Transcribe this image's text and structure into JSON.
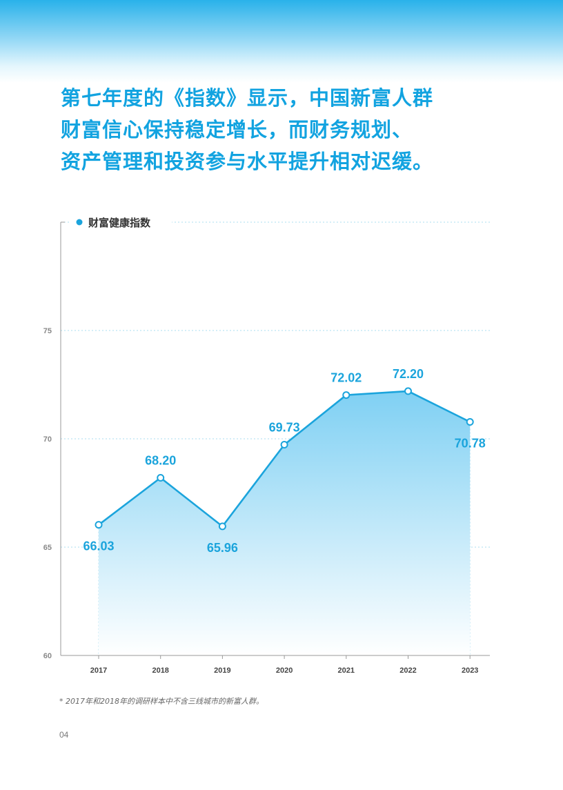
{
  "headline": {
    "lines": [
      "第七年度的《指数》显示，中国新富人群",
      "财富信心保持稳定增长，而财务规划、",
      "资产管理和投资参与水平提升相对迟缓。"
    ]
  },
  "chart_data": {
    "type": "area",
    "legend_label": "财富健康指数",
    "categories": [
      "2017",
      "2018",
      "2019",
      "2020",
      "2021",
      "2022",
      "2023"
    ],
    "values": [
      66.03,
      68.2,
      65.96,
      69.73,
      72.02,
      72.2,
      70.78
    ],
    "data_labels": [
      "66.03",
      "68.20",
      "65.96",
      "69.73",
      "72.02",
      "72.20",
      "70.78"
    ],
    "ylim": [
      60,
      80
    ],
    "yticks": [
      60,
      65,
      70,
      75
    ],
    "grid": true,
    "legend_position": "top-left",
    "colors": {
      "line": "#1ba4dc",
      "fill_top": "#7fd0f3",
      "label": "#1ba4dc"
    }
  },
  "footnote": "* 2017年和2018年的调研样本中不含三线城市的新富人群。",
  "page_number": "04"
}
